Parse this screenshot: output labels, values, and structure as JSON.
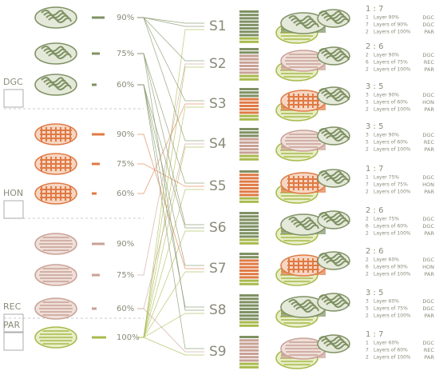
{
  "materials": [
    {
      "label": "DGC",
      "levels": [
        "90%",
        "75%",
        "60%"
      ]
    },
    {
      "label": "HON",
      "levels": [
        "90%",
        "75%",
        "60%"
      ]
    },
    {
      "label": "REC",
      "levels": [
        "90%",
        "75%",
        "60%"
      ]
    },
    {
      "label": "PAR",
      "levels": [
        "100%"
      ]
    }
  ],
  "samples": [
    {
      "name": "S1",
      "ratio": "1 : 7",
      "layers": [
        {
          "count": "1",
          "text": "Layer 90%",
          "code": "DGC"
        },
        {
          "count": "7",
          "text": "Layers of 90%",
          "code": "DGC"
        },
        {
          "count": "2",
          "text": "Layers of 100%",
          "code": "PAR"
        }
      ]
    },
    {
      "name": "S2",
      "ratio": "2 : 6",
      "layers": [
        {
          "count": "2",
          "text": "Layer 90%",
          "code": "DGC"
        },
        {
          "count": "6",
          "text": "Layers of 75%",
          "code": "REC"
        },
        {
          "count": "2",
          "text": "Layers of 100%",
          "code": "PAR"
        }
      ]
    },
    {
      "name": "S3",
      "ratio": "3 : 5",
      "layers": [
        {
          "count": "3",
          "text": "Layer 90%",
          "code": "DGC"
        },
        {
          "count": "5",
          "text": "Layers of 60%",
          "code": "HON"
        },
        {
          "count": "2",
          "text": "Layers of 100%",
          "code": "PAR"
        }
      ]
    },
    {
      "name": "S4",
      "ratio": "3 : 5",
      "layers": [
        {
          "count": "3",
          "text": "Layer 90%",
          "code": "DGC"
        },
        {
          "count": "5",
          "text": "Layers of 60%",
          "code": "REC"
        },
        {
          "count": "2",
          "text": "Layers of 100%",
          "code": "PAR"
        }
      ]
    },
    {
      "name": "S5",
      "ratio": "1 : 7",
      "layers": [
        {
          "count": "1",
          "text": "Layer 75%",
          "code": "DGC"
        },
        {
          "count": "7",
          "text": "Layers of 75%",
          "code": "HON"
        },
        {
          "count": "2",
          "text": "Layers of 100%",
          "code": "PAR"
        }
      ]
    },
    {
      "name": "S6",
      "ratio": "2 : 6",
      "layers": [
        {
          "count": "2",
          "text": "Layer 75%",
          "code": "DGC"
        },
        {
          "count": "6",
          "text": "Layers of 60%",
          "code": "DGC"
        },
        {
          "count": "2",
          "text": "Layers of 100%",
          "code": "PAR"
        }
      ]
    },
    {
      "name": "S7",
      "ratio": "2 : 6",
      "layers": [
        {
          "count": "2",
          "text": "Layer 60%",
          "code": "DGC"
        },
        {
          "count": "6",
          "text": "Layers of 90%",
          "code": "HON"
        },
        {
          "count": "2",
          "text": "Layers of 100%",
          "code": "PAR"
        }
      ]
    },
    {
      "name": "S8",
      "ratio": "3 : 5",
      "layers": [
        {
          "count": "3",
          "text": "Layer 60%",
          "code": "DGC"
        },
        {
          "count": "5",
          "text": "Layers of 75%",
          "code": "DGC"
        },
        {
          "count": "2",
          "text": "Layers of 100%",
          "code": "PAR"
        }
      ]
    },
    {
      "name": "S9",
      "ratio": "1 : 7",
      "layers": [
        {
          "count": "1",
          "text": "Layer 60%",
          "code": "DGC"
        },
        {
          "count": "7",
          "text": "Layers of 60%",
          "code": "REC"
        },
        {
          "count": "2",
          "text": "Layers of 100%",
          "code": "PAR"
        }
      ]
    }
  ]
}
